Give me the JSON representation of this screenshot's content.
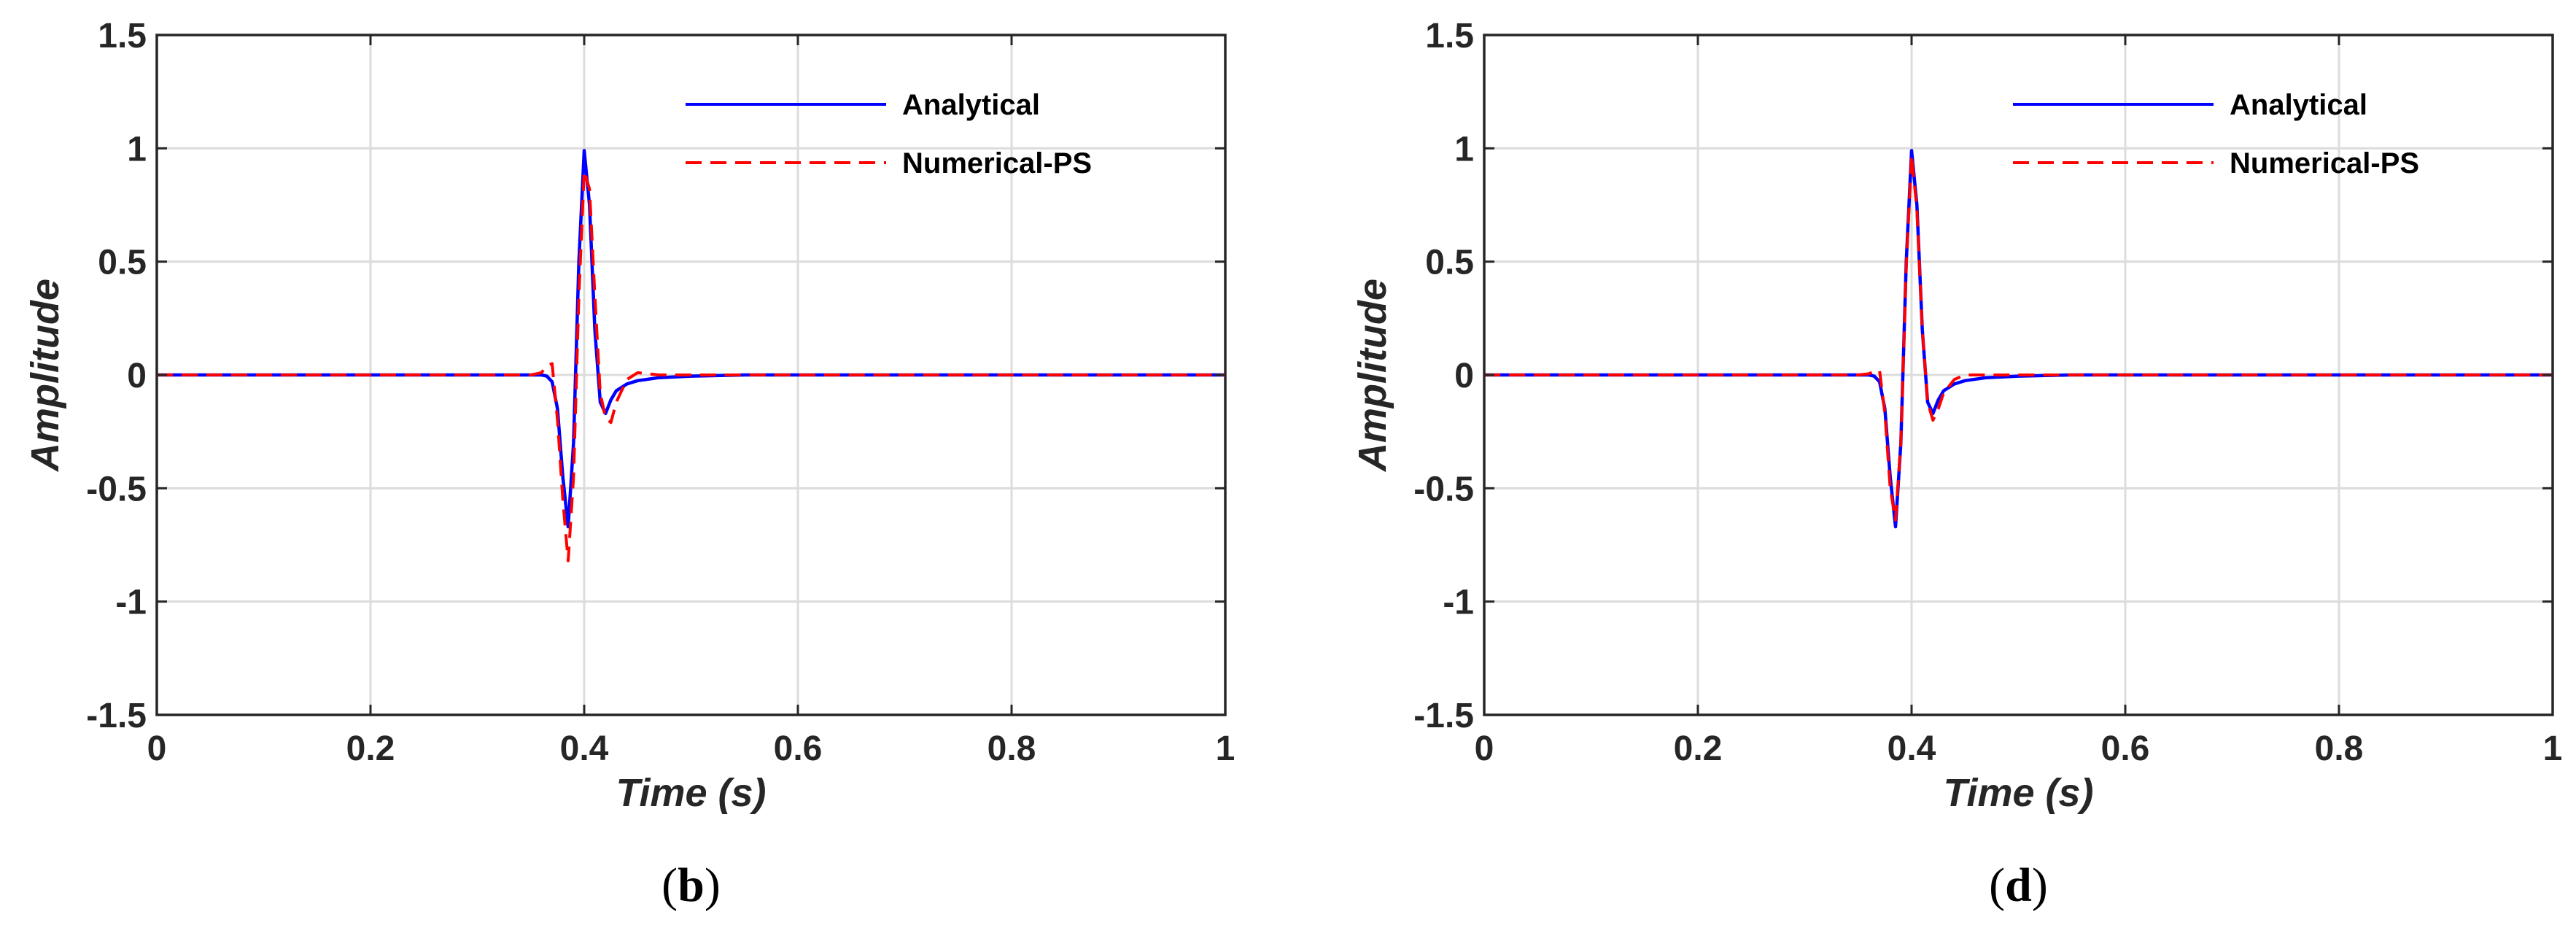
{
  "chart_data": [
    {
      "type": "line",
      "caption_letter": "b",
      "title": "",
      "xlabel": "Time (s)",
      "ylabel": "Amplitude",
      "xlim": [
        0,
        1
      ],
      "ylim": [
        -1.5,
        1.5
      ],
      "xticks": [
        0,
        0.2,
        0.4,
        0.6,
        0.8,
        1
      ],
      "yticks": [
        -1.5,
        -1,
        -0.5,
        0,
        0.5,
        1,
        1.5
      ],
      "xtick_labels": [
        "0",
        "0.2",
        "0.4",
        "0.6",
        "0.8",
        "1"
      ],
      "ytick_labels": [
        "-1.5",
        "-1",
        "-0.5",
        "0",
        "0.5",
        "1",
        "1.5"
      ],
      "grid": true,
      "legend_position": "top-right",
      "series": [
        {
          "name": "Analytical",
          "color": "#0000ff",
          "style": "solid",
          "x": [
            0,
            0.35,
            0.36,
            0.365,
            0.37,
            0.375,
            0.38,
            0.385,
            0.39,
            0.395,
            0.4,
            0.405,
            0.41,
            0.415,
            0.42,
            0.425,
            0.43,
            0.44,
            0.45,
            0.47,
            0.5,
            0.55,
            0.7,
            1
          ],
          "y": [
            0,
            0,
            0,
            -0.005,
            -0.03,
            -0.15,
            -0.45,
            -0.67,
            -0.3,
            0.5,
            0.99,
            0.75,
            0.2,
            -0.12,
            -0.17,
            -0.11,
            -0.07,
            -0.04,
            -0.025,
            -0.012,
            -0.005,
            0,
            0,
            0
          ]
        },
        {
          "name": "Numerical-PS",
          "color": "#ff0000",
          "style": "dashed",
          "x": [
            0,
            0.35,
            0.36,
            0.365,
            0.37,
            0.375,
            0.38,
            0.385,
            0.39,
            0.395,
            0.4,
            0.405,
            0.41,
            0.415,
            0.42,
            0.425,
            0.43,
            0.44,
            0.45,
            0.47,
            0.5,
            0.55,
            0.7,
            1
          ],
          "y": [
            0,
            0,
            0.01,
            0.04,
            0.05,
            -0.2,
            -0.55,
            -0.82,
            -0.45,
            0.35,
            0.9,
            0.82,
            0.35,
            -0.08,
            -0.19,
            -0.21,
            -0.12,
            -0.02,
            0.01,
            0,
            0,
            0,
            0,
            0
          ]
        }
      ]
    },
    {
      "type": "line",
      "caption_letter": "d",
      "title": "",
      "xlabel": "Time (s)",
      "ylabel": "Amplitude",
      "xlim": [
        0,
        1
      ],
      "ylim": [
        -1.5,
        1.5
      ],
      "xticks": [
        0,
        0.2,
        0.4,
        0.6,
        0.8,
        1
      ],
      "yticks": [
        -1.5,
        -1,
        -0.5,
        0,
        0.5,
        1,
        1.5
      ],
      "xtick_labels": [
        "0",
        "0.2",
        "0.4",
        "0.6",
        "0.8",
        "1"
      ],
      "ytick_labels": [
        "-1.5",
        "-1",
        "-0.5",
        "0",
        "0.5",
        "1",
        "1.5"
      ],
      "grid": true,
      "legend_position": "top-right",
      "series": [
        {
          "name": "Analytical",
          "color": "#0000ff",
          "style": "solid",
          "x": [
            0,
            0.35,
            0.36,
            0.365,
            0.37,
            0.375,
            0.38,
            0.385,
            0.39,
            0.395,
            0.4,
            0.405,
            0.41,
            0.415,
            0.42,
            0.425,
            0.43,
            0.44,
            0.45,
            0.47,
            0.5,
            0.55,
            0.7,
            1
          ],
          "y": [
            0,
            0,
            0,
            -0.005,
            -0.03,
            -0.15,
            -0.45,
            -0.67,
            -0.3,
            0.5,
            0.99,
            0.75,
            0.2,
            -0.12,
            -0.17,
            -0.11,
            -0.07,
            -0.04,
            -0.025,
            -0.012,
            -0.005,
            0,
            0,
            0
          ]
        },
        {
          "name": "Numerical-PS",
          "color": "#ff0000",
          "style": "dashed",
          "x": [
            0,
            0.35,
            0.36,
            0.365,
            0.37,
            0.375,
            0.38,
            0.385,
            0.39,
            0.395,
            0.4,
            0.405,
            0.41,
            0.415,
            0.42,
            0.425,
            0.43,
            0.44,
            0.45,
            0.47,
            0.5,
            0.55,
            0.7,
            1
          ],
          "y": [
            0,
            0,
            0.005,
            0.015,
            0.02,
            -0.17,
            -0.5,
            -0.64,
            -0.3,
            0.48,
            0.97,
            0.73,
            0.2,
            -0.12,
            -0.2,
            -0.15,
            -0.08,
            -0.02,
            0,
            0,
            0,
            0,
            0,
            0
          ]
        }
      ]
    }
  ]
}
